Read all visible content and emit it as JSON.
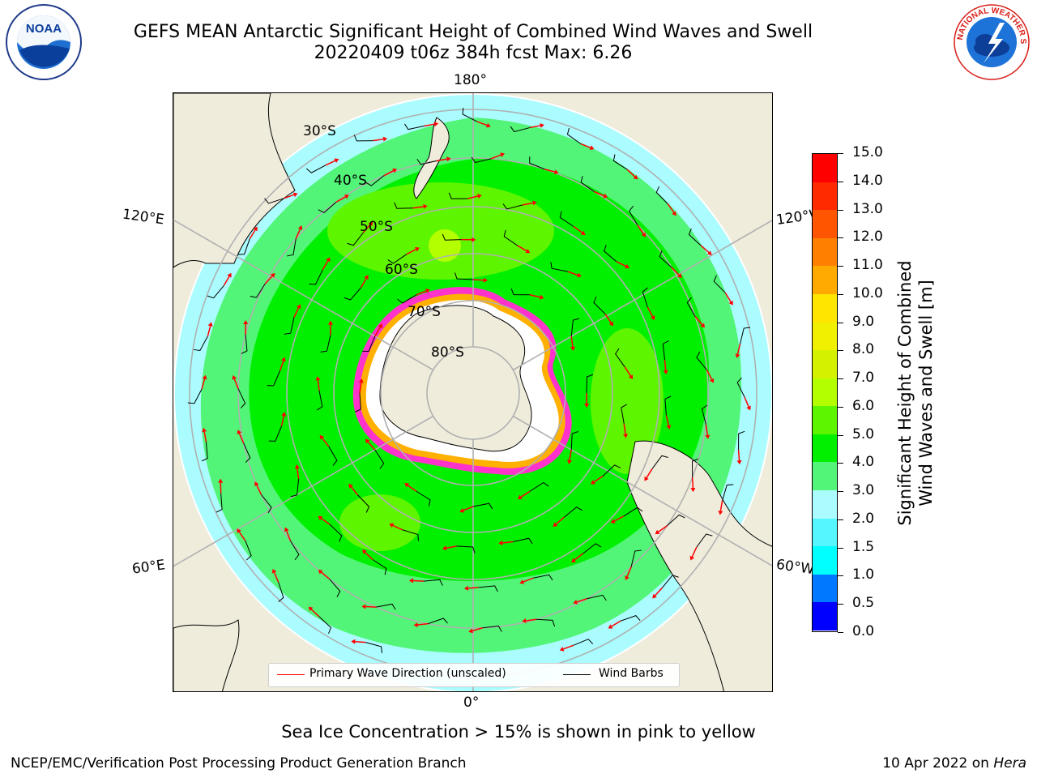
{
  "title": {
    "line1": "GEFS MEAN Antarctic Significant Height of Combined Wind Waves and Swell",
    "line2": "20220409 t06z 384h fcst   Max: 6.26"
  },
  "logos": {
    "noaa": {
      "text": "NOAA",
      "icon": "noaa-logo"
    },
    "nws": {
      "text": "NATIONAL WEATHER SERVICE",
      "icon": "nws-logo"
    }
  },
  "map": {
    "projection": "south-polar-stereographic",
    "longitude_labels": [
      "180°",
      "120°E",
      "120°W",
      "60°E",
      "60°W",
      "0°"
    ],
    "latitude_labels": [
      "30°S",
      "40°S",
      "50°S",
      "60°S",
      "70°S",
      "80°S"
    ],
    "legend": {
      "wave_direction": "Primary Wave Direction (unscaled)",
      "wind_barbs": "Wind Barbs"
    }
  },
  "colorbar": {
    "title_line1": "Significant Height of Combined",
    "title_line2": "Wind Waves and Swell [m]",
    "ticks": [
      "15.0",
      "14.0",
      "13.0",
      "12.0",
      "11.0",
      "10.0",
      "9.0",
      "8.0",
      "7.0",
      "6.0",
      "5.0",
      "4.0",
      "3.0",
      "2.0",
      "1.5",
      "1.0",
      "0.5",
      "0.0"
    ],
    "colors": [
      "#ff0000",
      "#ff2a00",
      "#ff5500",
      "#ff8000",
      "#ffaa00",
      "#ffe600",
      "#f0f000",
      "#d4f200",
      "#b3ff00",
      "#5ef500",
      "#00f000",
      "#52f577",
      "#aafcff",
      "#55f6ff",
      "#00ffff",
      "#0078ff",
      "#0000ff"
    ]
  },
  "caption": "Sea Ice Concentration > 15% is shown in pink to yellow",
  "footer": {
    "left": "NCEP/EMC/Verification Post Processing Product Generation Branch",
    "right_date": "10 Apr 2022 on",
    "right_machine": "Hera"
  }
}
